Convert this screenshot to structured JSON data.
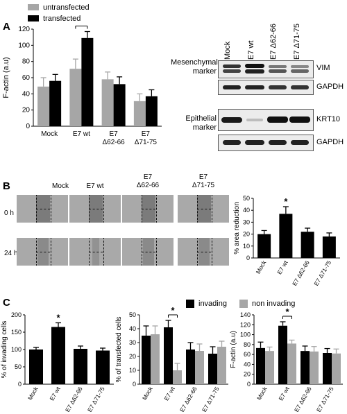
{
  "legend_top": {
    "untransfected": "untransfected",
    "transfected": "transfected"
  },
  "legend_c": {
    "invading": "invading",
    "non_invading": "non invading"
  },
  "panels": {
    "A": "A",
    "B": "B",
    "C": "C"
  },
  "colors": {
    "black": "#000000",
    "gray": "#a6a6a6",
    "micro_bg": "#a9a9a9"
  },
  "blot": {
    "lanes": [
      "Mock",
      "E7 wt",
      "E7 Δ62-66",
      "E7 Δ71-75"
    ],
    "mesenchymal": "Mesenchymal\nmarker",
    "epithelial": "Epithelial\nmarker",
    "vim": "VIM",
    "gapdh1": "GAPDH",
    "krt10": "KRT10",
    "gapdh2": "GAPDH"
  },
  "wound": {
    "columns": [
      "Mock",
      "E7 wt",
      "E7\nΔ62-66",
      "E7\nΔ71-75"
    ],
    "rows": [
      "0 h",
      "24 h"
    ]
  },
  "chart_data": [
    {
      "id": "A",
      "type": "bar",
      "categories": [
        "Mock",
        "E7 wt",
        "E7\nΔ62-66",
        "E7\nΔ71-75"
      ],
      "series": [
        {
          "name": "untransfected",
          "values": [
            49,
            71,
            58,
            31
          ],
          "errors": [
            11,
            12,
            9,
            9
          ]
        },
        {
          "name": "transfected",
          "values": [
            56,
            109,
            52,
            37
          ],
          "errors": [
            8,
            8,
            9,
            8
          ]
        }
      ],
      "ylabel": "F-actin (a.u)",
      "ylim": [
        0,
        120
      ],
      "yticks": [
        0,
        20,
        40,
        60,
        80,
        100,
        120
      ],
      "significance": {
        "between": [
          1,
          1
        ],
        "label": "*"
      }
    },
    {
      "id": "B",
      "type": "bar",
      "categories": [
        "Mock",
        "E7 wt",
        "E7 Δ62-66",
        "E7 Δ71-75"
      ],
      "values": [
        20,
        37,
        22,
        18
      ],
      "errors": [
        3,
        6,
        3,
        3
      ],
      "ylabel": "% area reduction",
      "ylim": [
        0,
        50
      ],
      "yticks": [
        0,
        10,
        20,
        30,
        40,
        50
      ],
      "significance_label": "*"
    },
    {
      "id": "C1",
      "type": "bar",
      "categories": [
        "Mock",
        "E7 wt",
        "E7 Δ62-66",
        "E7 Δ71-75"
      ],
      "values": [
        100,
        165,
        102,
        97
      ],
      "errors": [
        6,
        12,
        8,
        7
      ],
      "ylabel": "% of invading cells",
      "ylim": [
        0,
        200
      ],
      "yticks": [
        0,
        50,
        100,
        150,
        200
      ],
      "significance_label": "*"
    },
    {
      "id": "C2",
      "type": "bar",
      "categories": [
        "Mock",
        "E7 wt",
        "E7 Δ62-66",
        "E7 Δ71-75"
      ],
      "series": [
        {
          "name": "invading",
          "values": [
            35,
            41,
            25,
            22
          ],
          "errors": [
            7,
            5,
            5,
            5
          ]
        },
        {
          "name": "non invading",
          "values": [
            36,
            10,
            24,
            27
          ],
          "errors": [
            6,
            5,
            5,
            4
          ]
        }
      ],
      "ylabel": "% of transfected cells",
      "ylim": [
        0,
        50
      ],
      "yticks": [
        0,
        10,
        20,
        30,
        40,
        50
      ],
      "significance_label": "*"
    },
    {
      "id": "C3",
      "type": "bar",
      "categories": [
        "Mock",
        "E7 wt",
        "E7 Δ62-66",
        "E7 Δ71-75"
      ],
      "series": [
        {
          "name": "invading",
          "values": [
            73,
            118,
            67,
            63
          ],
          "errors": [
            12,
            8,
            10,
            9
          ]
        },
        {
          "name": "non invading",
          "values": [
            67,
            82,
            66,
            62
          ],
          "errors": [
            8,
            7,
            10,
            9
          ]
        }
      ],
      "ylabel": "F-actin (a.u)",
      "ylim": [
        0,
        140
      ],
      "yticks": [
        0,
        20,
        40,
        60,
        80,
        100,
        120,
        140
      ],
      "significance_label": "*"
    }
  ]
}
